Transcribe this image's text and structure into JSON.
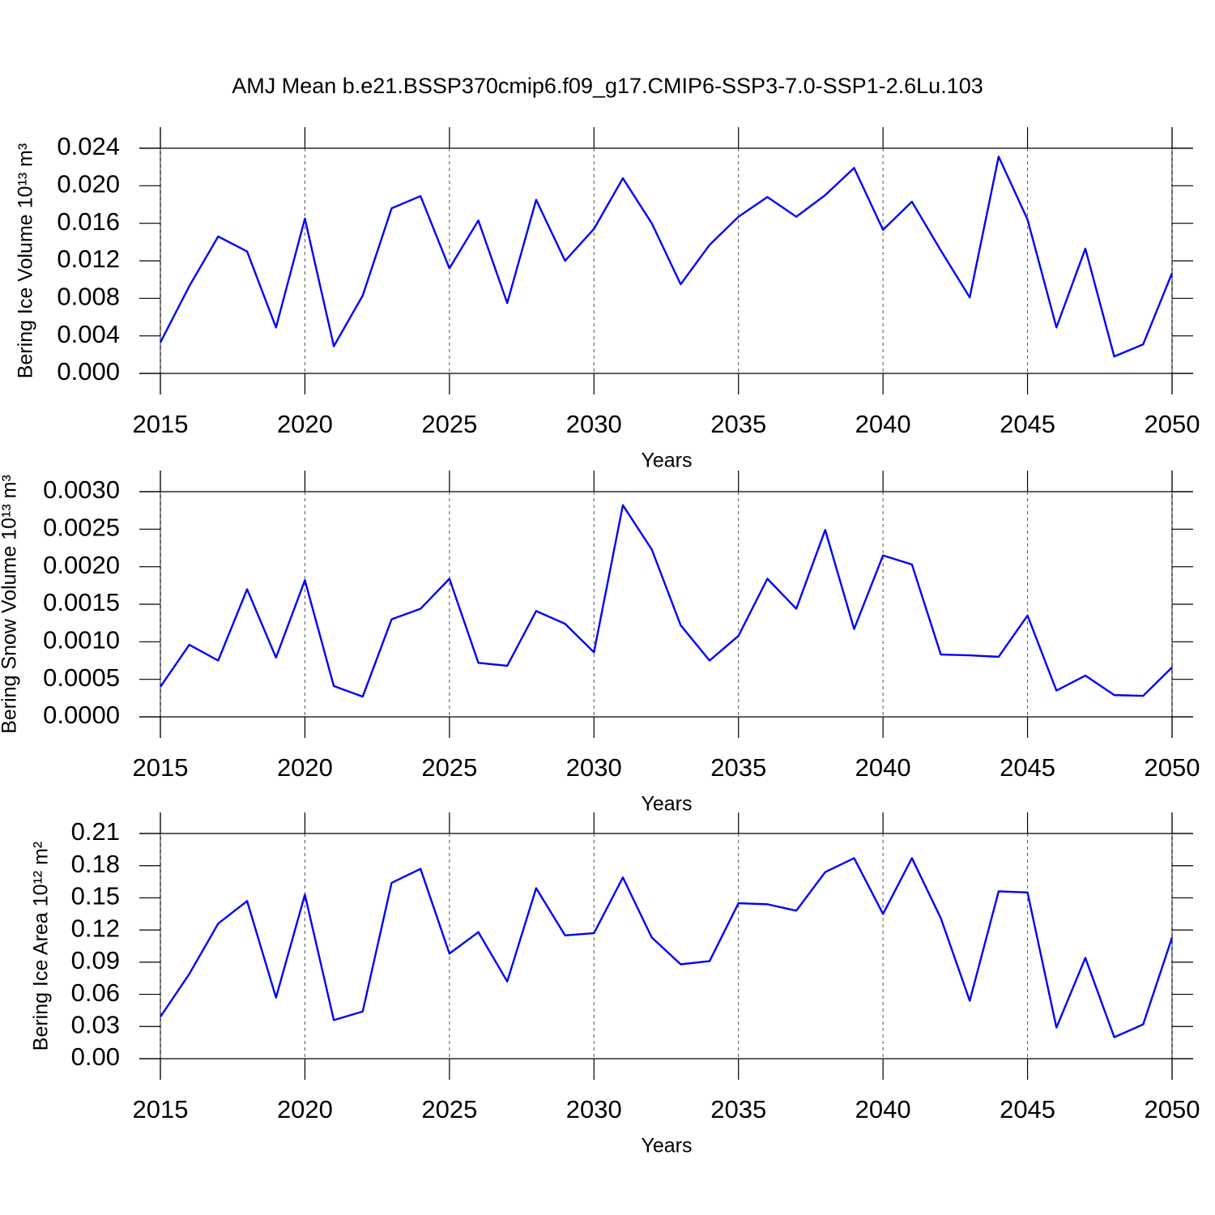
{
  "title": "AMJ Mean b.e21.BSSP370cmip6.f09_g17.CMIP6-SSP3-7.0-SSP1-2.6Lu.103",
  "chart_data": [
    {
      "type": "line",
      "ylabel": "Bering Ice Volume 10¹³ m³",
      "xlabel": "Years",
      "x": [
        2015,
        2016,
        2017,
        2018,
        2019,
        2020,
        2021,
        2022,
        2023,
        2024,
        2025,
        2026,
        2027,
        2028,
        2029,
        2030,
        2031,
        2032,
        2033,
        2034,
        2035,
        2036,
        2037,
        2038,
        2039,
        2040,
        2041,
        2042,
        2043,
        2044,
        2045,
        2046,
        2047,
        2048,
        2049,
        2050
      ],
      "series": [
        {
          "color": "#0000ff",
          "values": [
            0.0033,
            0.0093,
            0.0146,
            0.013,
            0.0049,
            0.0165,
            0.0029,
            0.0083,
            0.0176,
            0.0189,
            0.0112,
            0.0163,
            0.0075,
            0.0185,
            0.012,
            0.0154,
            0.0208,
            0.016,
            0.0095,
            0.0137,
            0.0167,
            0.0188,
            0.0167,
            0.019,
            0.0219,
            0.0153,
            0.0183,
            0.0131,
            0.0081,
            0.0231,
            0.0164,
            0.0049,
            0.0133,
            0.0018,
            0.0031,
            0.0107
          ]
        }
      ],
      "xlim": [
        2015,
        2050
      ],
      "xticks": [
        2015,
        2020,
        2025,
        2030,
        2035,
        2040,
        2045,
        2050
      ],
      "ylim": [
        0,
        0.024
      ],
      "yticks": [
        {
          "value": 0,
          "label": "0.000"
        },
        0.004,
        0.008,
        0.012,
        0.016,
        {
          "value": 0.02,
          "label": "0.020"
        },
        0.024
      ],
      "xgrid": true
    },
    {
      "type": "line",
      "ylabel": "Bering Snow Volume 10¹³ m³",
      "xlabel": "Years",
      "x": [
        2015,
        2016,
        2017,
        2018,
        2019,
        2020,
        2021,
        2022,
        2023,
        2024,
        2025,
        2026,
        2027,
        2028,
        2029,
        2030,
        2031,
        2032,
        2033,
        2034,
        2035,
        2036,
        2037,
        2038,
        2039,
        2040,
        2041,
        2042,
        2043,
        2044,
        2045,
        2046,
        2047,
        2048,
        2049,
        2050
      ],
      "series": [
        {
          "color": "#0000ff",
          "values": [
            0.0004,
            0.00096,
            0.00075,
            0.0017,
            0.00079,
            0.00182,
            0.00041,
            0.00027,
            0.0013,
            0.00144,
            0.00184,
            0.00072,
            0.00068,
            0.00141,
            0.00124,
            0.00086,
            0.00282,
            0.00223,
            0.00122,
            0.00075,
            0.00108,
            0.00184,
            0.00144,
            0.00249,
            0.00117,
            0.00215,
            0.00203,
            0.00083,
            0.00082,
            0.0008,
            0.00135,
            0.00035,
            0.00055,
            0.00029,
            0.00028,
            0.00066
          ]
        }
      ],
      "xlim": [
        2015,
        2050
      ],
      "xticks": [
        2015,
        2020,
        2025,
        2030,
        2035,
        2040,
        2045,
        2050
      ],
      "ylim": [
        0,
        0.003
      ],
      "yticks": [
        {
          "value": 0,
          "label": "0.0000"
        },
        0.0005,
        {
          "value": 0.001,
          "label": "0.0010"
        },
        0.0015,
        {
          "value": 0.002,
          "label": "0.0020"
        },
        0.0025,
        {
          "value": 0.003,
          "label": "0.0030"
        }
      ],
      "xgrid": true
    },
    {
      "type": "line",
      "ylabel": "Bering Ice Area 10¹² m²",
      "xlabel": "Years",
      "x": [
        2015,
        2016,
        2017,
        2018,
        2019,
        2020,
        2021,
        2022,
        2023,
        2024,
        2025,
        2026,
        2027,
        2028,
        2029,
        2030,
        2031,
        2032,
        2033,
        2034,
        2035,
        2036,
        2037,
        2038,
        2039,
        2040,
        2041,
        2042,
        2043,
        2044,
        2045,
        2046,
        2047,
        2048,
        2049,
        2050
      ],
      "series": [
        {
          "color": "#0000ff",
          "values": [
            0.039,
            0.079,
            0.126,
            0.147,
            0.057,
            0.153,
            0.036,
            0.044,
            0.164,
            0.177,
            0.098,
            0.118,
            0.072,
            0.159,
            0.115,
            0.117,
            0.169,
            0.113,
            0.088,
            0.091,
            0.145,
            0.144,
            0.138,
            0.174,
            0.187,
            0.135,
            0.187,
            0.131,
            0.054,
            0.156,
            0.155,
            0.029,
            0.094,
            0.02,
            0.032,
            0.113
          ]
        }
      ],
      "xlim": [
        2015,
        2050
      ],
      "xticks": [
        2015,
        2020,
        2025,
        2030,
        2035,
        2040,
        2045,
        2050
      ],
      "ylim": [
        0,
        0.21
      ],
      "yticks": [
        {
          "value": 0,
          "label": "0.00"
        },
        0.03,
        0.06,
        0.09,
        0.12,
        0.15,
        0.18,
        0.21
      ],
      "xgrid": true
    }
  ]
}
